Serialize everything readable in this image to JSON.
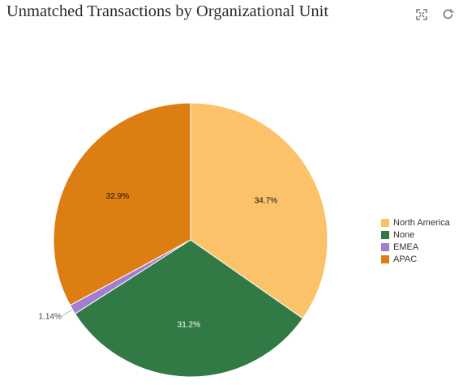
{
  "header": {
    "title": "Unmatched Transactions by Organizational Unit"
  },
  "toolbar": {
    "expand_icon": "expand-icon",
    "refresh_icon": "refresh-icon"
  },
  "colors": {
    "north_america": "#FBC26A",
    "none": "#317A46",
    "emea": "#A17FCE",
    "apac": "#DD7E12"
  },
  "chart_data": {
    "type": "pie",
    "title": "Unmatched Transactions by Organizational Unit",
    "categories": [
      "North America",
      "None",
      "EMEA",
      "APAC"
    ],
    "values": [
      34.7,
      31.2,
      1.14,
      32.9
    ],
    "labels": [
      "34.7%",
      "31.2%",
      "1.14%",
      "32.9%"
    ],
    "colors": [
      "#FBC26A",
      "#317A46",
      "#A17FCE",
      "#DD7E12"
    ],
    "legend": {
      "position": "right",
      "entries": [
        "North America",
        "None",
        "EMEA",
        "APAC"
      ]
    }
  }
}
